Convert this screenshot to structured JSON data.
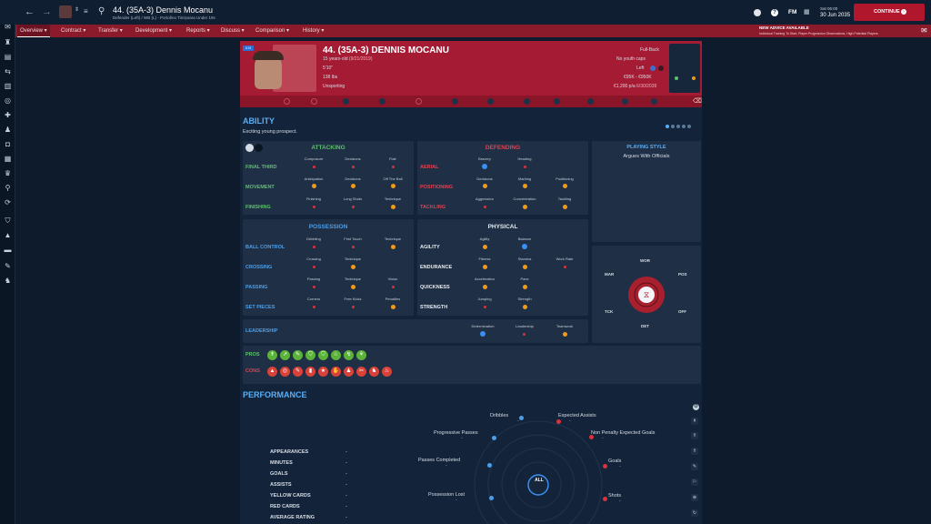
{
  "header": {
    "title": "44. (35A-3) Dennis Mocanu",
    "subtitle": "Defender (Left) / WB (L) - Portofino Timișoara Under 19s",
    "date_line1": "Sat 06:00",
    "date_line2": "30 Jun 2035",
    "continue_label": "CONTINUE",
    "fm_label": "FM"
  },
  "nav": {
    "items": [
      "Overview",
      "Contract",
      "Transfer",
      "Development",
      "Reports",
      "Discuss",
      "Comparison",
      "History"
    ]
  },
  "advice": {
    "title": "NEW ADVICE AVAILABLE",
    "text": "Individual Training To Start, Player Progression Observations, High Potential Players"
  },
  "player": {
    "name": "44. (35A-3) DENNIS MOCANU",
    "age": "15 years-old",
    "dob": "(9/21/2019)",
    "height": "5'10\"",
    "weight": "138 lbs",
    "club": "Unsporting",
    "position": "Full-Back",
    "caps": "No youth caps",
    "foot": "Left",
    "value": "€95K - €950K",
    "wage": "€1,200 p/a",
    "wage_date": "6/30/2039",
    "badge": "U19"
  },
  "ability": {
    "title": "ABILITY",
    "desc": "Exciting young prospect.",
    "attacking": {
      "title": "ATTACKING",
      "rows": [
        "FINAL THIRD",
        "MOVEMENT",
        "FINISHING"
      ],
      "subs": [
        [
          "Composure",
          "Decisions",
          "Flair"
        ],
        [
          "Anticipation",
          "Decisions",
          "Off The Ball"
        ],
        [
          "Finishing",
          "Long Shots",
          "Technique"
        ]
      ]
    },
    "defending": {
      "title": "DEFENDING",
      "rows": [
        "AERIAL",
        "POSITIONING",
        "TACKLING"
      ],
      "subs": [
        [
          "Bravery",
          "Heading"
        ],
        [
          "Decisions",
          "Marking",
          "Positioning"
        ],
        [
          "Aggression",
          "Concentration",
          "Tackling"
        ]
      ]
    },
    "possession": {
      "title": "POSSESSION",
      "rows": [
        "BALL CONTROL",
        "CROSSING",
        "PASSING",
        "SET PIECES"
      ],
      "subs": [
        [
          "Dribbling",
          "First Touch",
          "Technique"
        ],
        [
          "Crossing",
          "Technique"
        ],
        [
          "Passing",
          "Technique",
          "Vision"
        ],
        [
          "Corners",
          "Free Kicks",
          "Penalties"
        ]
      ]
    },
    "physical": {
      "title": "PHYSICAL",
      "rows": [
        "AGILITY",
        "ENDURANCE",
        "QUICKNESS",
        "STRENGTH"
      ],
      "subs": [
        [
          "Agility",
          "Balance"
        ],
        [
          "Fitness",
          "Stamina",
          "Work Rate"
        ],
        [
          "Acceleration",
          "Pace"
        ],
        [
          "Jumping",
          "Strength"
        ]
      ]
    },
    "leadership": {
      "title": "LEADERSHIP",
      "subs": [
        "Determination",
        "Leadership",
        "Teamwork"
      ]
    },
    "style": {
      "title": "PLAYING STYLE",
      "text": "Argues With Officials"
    },
    "radar": {
      "labels": [
        "WOR",
        "POS",
        "OFF",
        "DET",
        "TCK",
        "MAR"
      ]
    },
    "pros": "PROS",
    "cons": "CONS"
  },
  "performance": {
    "title": "PERFORMANCE",
    "stats": [
      {
        "label": "APPEARANCES",
        "value": "-"
      },
      {
        "label": "MINUTES",
        "value": "-"
      },
      {
        "label": "GOALS",
        "value": "-"
      },
      {
        "label": "ASSISTS",
        "value": "-"
      },
      {
        "label": "YELLOW CARDS",
        "value": "-"
      },
      {
        "label": "RED CARDS",
        "value": "-"
      },
      {
        "label": "AVERAGE RATING",
        "value": "-"
      }
    ],
    "metrics": [
      {
        "label": "Dribbles",
        "value": "-"
      },
      {
        "label": "Expected Assists",
        "value": "-"
      },
      {
        "label": "Progressive Passes",
        "value": "-"
      },
      {
        "label": "Non Penalty Expected Goals",
        "value": "-"
      },
      {
        "label": "Passes Completed",
        "value": "-"
      },
      {
        "label": "Goals",
        "value": "-"
      },
      {
        "label": "Possession Lost",
        "value": "-"
      },
      {
        "label": "Shots",
        "value": "-"
      }
    ],
    "center": "ALL"
  },
  "colors": {
    "good": "#3a8ff0",
    "ok": "#f19a1a",
    "bad": "#d9323d",
    "attack": "#5cc06a",
    "defend": "#e0404f",
    "possess": "#4c9ee8"
  }
}
